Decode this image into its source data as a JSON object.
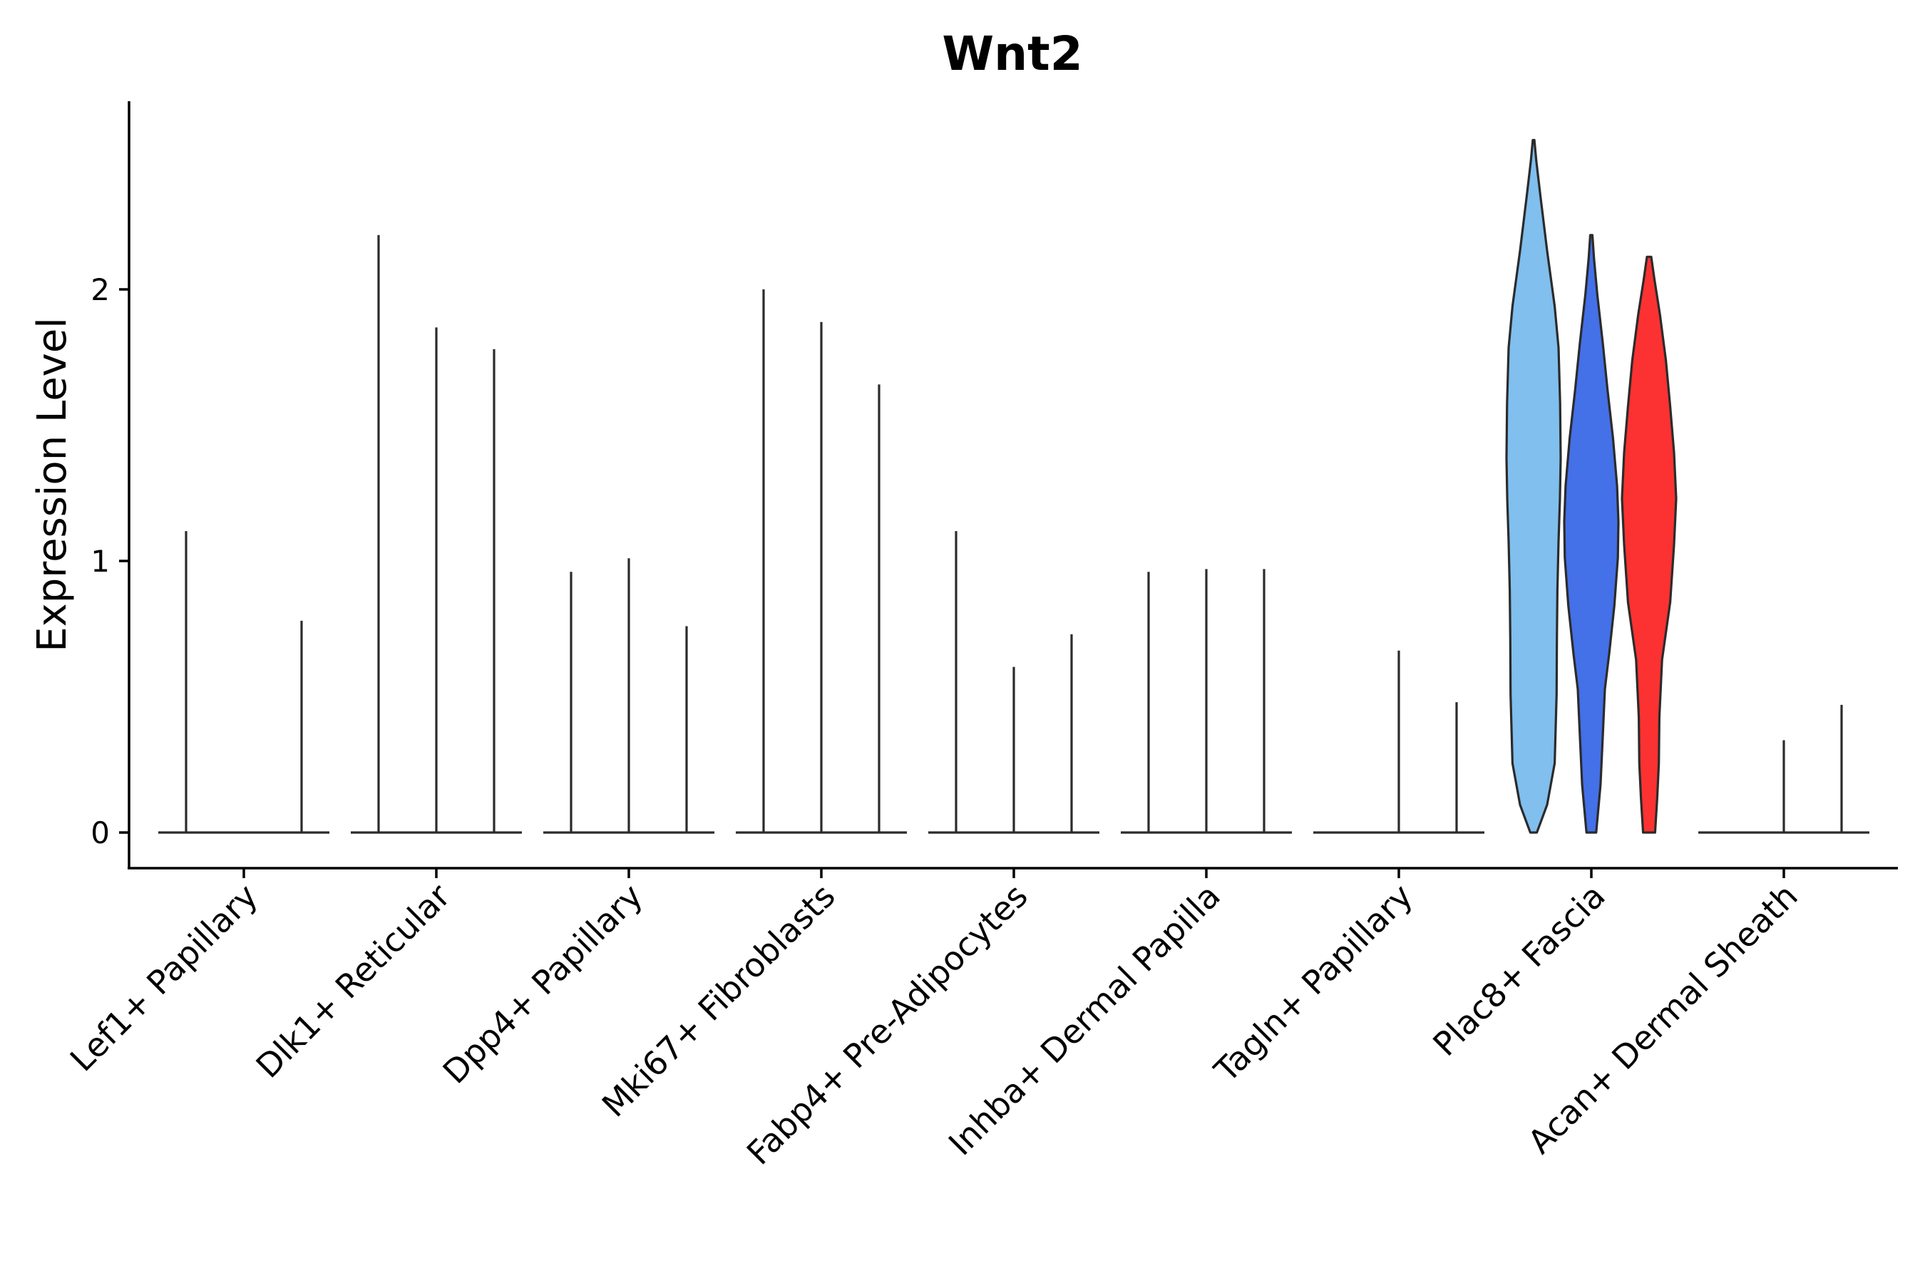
{
  "chart_data": {
    "type": "violin",
    "title": "Wnt2",
    "ylabel": "Expression Level",
    "xlabel": "",
    "ylim": [
      -0.13,
      2.7
    ],
    "yticks": [
      "0",
      "1",
      "2"
    ],
    "yticks_values": [
      0,
      1,
      2
    ],
    "categories": [
      "Lef1+ Papillary",
      "Dlk1+ Reticular",
      "Dpp4+ Papillary",
      "Mki67+ Fibroblasts",
      "Fabp4+ Pre-Adipocytes",
      "Inhba+ Dermal Papilla",
      "Tagln+ Papillary",
      "Plac8+ Fascia",
      "Acan+ Dermal Sheath"
    ],
    "series": [
      {
        "values": [
          0.0,
          0.0,
          0.0,
          0.0,
          0.0,
          0.0,
          0.0,
          2.55,
          0.0
        ],
        "color": "#80bfee",
        "spike": [
          1.11,
          2.2,
          0.96,
          2.0,
          1.11,
          0.96,
          0.0,
          0,
          0.0
        ]
      },
      {
        "values": [
          0.0,
          0.0,
          0.0,
          0.0,
          0.0,
          0.0,
          0.0,
          2.2,
          0.0
        ],
        "color": "#4470e8",
        "spike": [
          0.0,
          1.86,
          1.01,
          1.88,
          0.61,
          0.97,
          0.67,
          0,
          0.34
        ]
      },
      {
        "values": [
          0.0,
          0.0,
          0.0,
          0.0,
          0.0,
          0.0,
          0.0,
          2.12,
          0.0
        ],
        "color": "#fc3232",
        "spike": [
          0.78,
          1.78,
          0.76,
          1.65,
          0.73,
          0.97,
          0.48,
          0,
          0.47
        ]
      }
    ]
  }
}
